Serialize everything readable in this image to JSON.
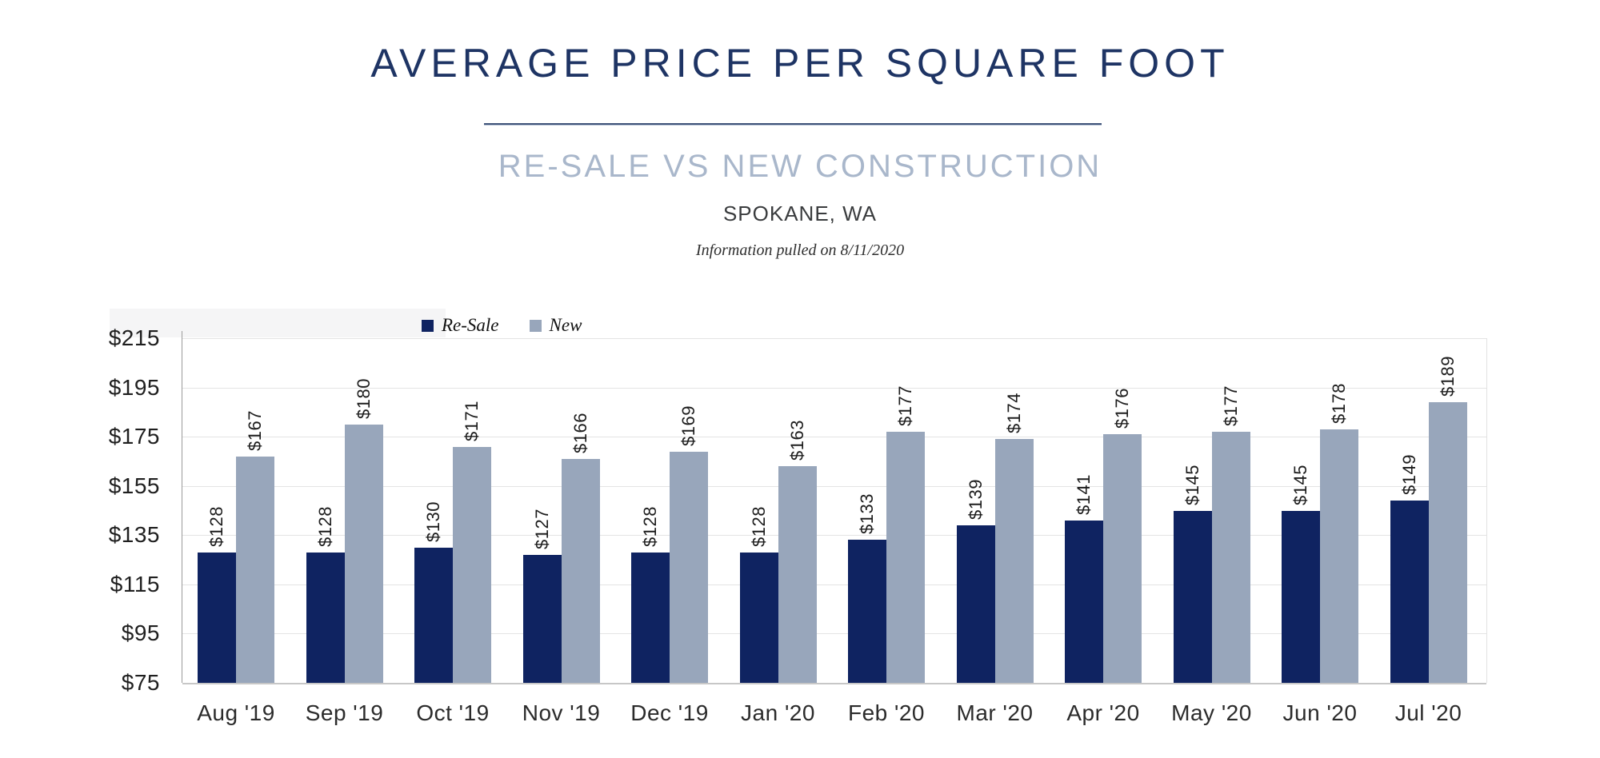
{
  "header": {
    "title": "AVERAGE PRICE PER SQUARE FOOT",
    "subtitle": "RE-SALE VS NEW CONSTRUCTION",
    "location": "SPOKANE, WA",
    "info_note": "Information pulled on 8/11/2020"
  },
  "colors": {
    "title_navy": "#1e3464",
    "subtitle_blue_gray": "#a9b7cb",
    "resale_navy": "#0f2361",
    "new_gray_blue": "#98a6bb",
    "gridline": "#e4e4e4",
    "axis_line": "#9b9b9b"
  },
  "chart_data": {
    "type": "bar",
    "title": "Average Price Per Square Foot — Re-Sale vs New Construction, Spokane, WA",
    "categories": [
      "Aug '19",
      "Sep '19",
      "Oct '19",
      "Nov '19",
      "Dec '19",
      "Jan '20",
      "Feb '20",
      "Mar '20",
      "Apr '20",
      "May '20",
      "Jun '20",
      "Jul '20"
    ],
    "series": [
      {
        "name": "Re-Sale",
        "color": "#0f2361",
        "values": [
          128,
          128,
          130,
          127,
          128,
          128,
          133,
          139,
          141,
          145,
          145,
          149
        ],
        "labels": [
          "$128",
          "$128",
          "$130",
          "$127",
          "$128",
          "$128",
          "$133",
          "$139",
          "$141",
          "$145",
          "$145",
          "$149"
        ]
      },
      {
        "name": "New",
        "color": "#98a6bb",
        "values": [
          167,
          180,
          171,
          166,
          169,
          163,
          177,
          174,
          176,
          177,
          178,
          189
        ],
        "labels": [
          "$167",
          "$180",
          "$171",
          "$166",
          "$169",
          "$163",
          "$177",
          "$174",
          "$176",
          "$177",
          "$178",
          "$189"
        ]
      }
    ],
    "xlabel": "",
    "ylabel": "",
    "ylim": [
      75,
      215
    ],
    "ytick_step": 20,
    "ytick_labels": [
      "$75",
      "$95",
      "$115",
      "$135",
      "$155",
      "$175",
      "$195",
      "$215"
    ],
    "grid": true,
    "legend_position": "top-inside-left",
    "value_label_rotation": -90,
    "value_prefix": "$"
  }
}
